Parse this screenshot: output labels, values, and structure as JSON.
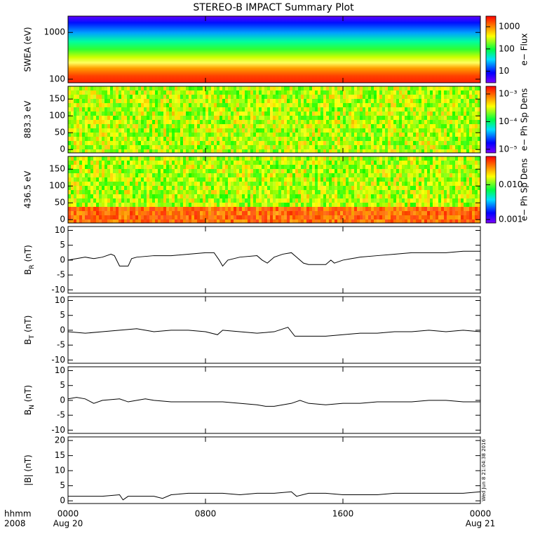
{
  "chart_data": [
    {
      "type": "spectrogram",
      "title": "STEREO-B IMPACT Summary Plot",
      "ylabel": "SWEA (eV)",
      "log": true,
      "ylim": [
        84,
        2230
      ],
      "yticks": [
        100,
        1000
      ],
      "colorbar": {
        "label": "e− Flux",
        "log": true,
        "lim": [
          3,
          3000
        ],
        "ticks": [
          10,
          100,
          1000
        ]
      },
      "palette": "bands"
    },
    {
      "type": "spectrogram",
      "ylabel": "883.3 eV",
      "log": false,
      "ylim": [
        -10,
        188
      ],
      "yticks": [
        0,
        50,
        100,
        150
      ],
      "colorbar": {
        "label": "e− Ph Sp Dens",
        "log": true,
        "lim": [
          7.4e-06,
          0.0019
        ],
        "ticks": [
          {
            "value": 0.001,
            "label": "10⁻³"
          },
          {
            "value": 0.0001,
            "label": "10⁻⁴"
          },
          {
            "value": 1e-05,
            "label": "10⁻⁵"
          }
        ]
      },
      "palette": "noise"
    },
    {
      "type": "spectrogram",
      "ylabel": "436.5 eV",
      "log": false,
      "ylim": [
        -10,
        188
      ],
      "yticks": [
        0,
        50,
        100,
        150
      ],
      "colorbar": {
        "label": "e− Ph Sp Dens",
        "log": true,
        "lim": [
          0.00079,
          0.066
        ],
        "ticks": [
          {
            "value": 0.001,
            "label": "0.001"
          },
          {
            "value": 0.01,
            "label": "0.010"
          }
        ]
      },
      "palette": "noise-low"
    },
    {
      "type": "line",
      "ylabel": [
        "B",
        "R",
        " (nT)"
      ],
      "ylim": [
        -11.1,
        11.3
      ],
      "yticks": [
        -10,
        -5,
        0,
        5,
        10
      ],
      "x": [
        0,
        0.5,
        1,
        1.5,
        2,
        2.5,
        2.7,
        3,
        3.5,
        3.7,
        4,
        5,
        6,
        7,
        8,
        8.5,
        8.8,
        9,
        9.3,
        10,
        11,
        11.3,
        11.6,
        12,
        12.5,
        13,
        13.3,
        13.7,
        14,
        15,
        15.3,
        15.5,
        16,
        16.5,
        17,
        18,
        19,
        20,
        22,
        23,
        24
      ],
      "values": [
        0,
        0.5,
        1,
        0.5,
        1,
        2,
        1.5,
        -2,
        -2,
        0.5,
        1,
        1.5,
        1.5,
        2,
        2.5,
        2.5,
        0,
        -2,
        0,
        1,
        1.5,
        0,
        -1,
        1,
        2,
        2.5,
        1,
        -1,
        -1.5,
        -1.5,
        0,
        -1,
        0,
        0.5,
        1,
        1.5,
        2,
        2.5,
        2.5,
        3,
        3
      ],
      "color": "#000000"
    },
    {
      "type": "line",
      "ylabel": [
        "B",
        "T",
        " (nT)"
      ],
      "ylim": [
        -11.1,
        11.3
      ],
      "yticks": [
        -10,
        -5,
        0,
        5,
        10
      ],
      "x": [
        0,
        1,
        2,
        3,
        4,
        5,
        6,
        7,
        8,
        8.7,
        9,
        10,
        11,
        12,
        12.8,
        13.2,
        14,
        15,
        16,
        17,
        18,
        19,
        20,
        21,
        22,
        23,
        24
      ],
      "values": [
        -0.5,
        -1,
        -0.5,
        0,
        0.5,
        -0.5,
        0,
        0,
        -0.5,
        -1.5,
        0,
        -0.5,
        -1,
        -0.5,
        1,
        -2,
        -2,
        -2,
        -1.5,
        -1,
        -1,
        -0.5,
        -0.5,
        0,
        -0.5,
        0,
        -0.5
      ],
      "color": "#000000"
    },
    {
      "type": "line",
      "ylabel": [
        "B",
        "N",
        " (nT)"
      ],
      "ylim": [
        -11.1,
        11.3
      ],
      "yticks": [
        -10,
        -5,
        0,
        5,
        10
      ],
      "x": [
        0,
        0.5,
        1,
        1.5,
        2,
        3,
        3.5,
        4,
        4.5,
        5,
        6,
        7,
        8,
        9,
        10,
        11,
        11.5,
        12,
        12.5,
        13,
        13.5,
        14,
        15,
        16,
        17,
        18,
        19,
        20,
        21,
        22,
        23,
        24
      ],
      "values": [
        0.5,
        1,
        0.5,
        -1,
        0,
        0.5,
        -0.5,
        0,
        0.5,
        0,
        -0.5,
        -0.5,
        -0.5,
        -0.5,
        -1,
        -1.5,
        -2,
        -2,
        -1.5,
        -1,
        0,
        -1,
        -1.5,
        -1,
        -1,
        -0.5,
        -0.5,
        -0.5,
        0,
        0,
        -0.5,
        -0.5
      ],
      "color": "#000000"
    },
    {
      "type": "line",
      "ylabel": [
        "|B| (nT)"
      ],
      "ylim": [
        -0.9,
        21.2
      ],
      "yticks": [
        0,
        5,
        10,
        15,
        20
      ],
      "x": [
        0,
        1,
        2,
        3,
        3.2,
        3.5,
        4,
        5,
        5.5,
        6,
        7,
        8,
        9,
        10,
        11,
        12,
        13,
        13.3,
        14,
        15,
        16,
        17,
        18,
        19,
        20,
        21,
        22,
        23,
        24
      ],
      "values": [
        1.5,
        1.5,
        1.5,
        2,
        0.3,
        1.5,
        1.5,
        1.5,
        0.8,
        2,
        2.5,
        2.5,
        2.5,
        2,
        2.5,
        2.5,
        3,
        1.5,
        2.5,
        2.5,
        2,
        2,
        2,
        2.5,
        2.5,
        2.5,
        2.5,
        2.5,
        3
      ],
      "color": "#000000",
      "xlim": [
        0,
        24
      ],
      "xticks": [
        {
          "value": 0,
          "label": "0000"
        },
        {
          "value": 8,
          "label": "0800"
        },
        {
          "value": 16,
          "label": "1600"
        },
        {
          "value": 24,
          "label": "0000"
        }
      ],
      "date_labels": [
        "Aug 20",
        "Aug 21"
      ],
      "axis_prefix": [
        "hhmm",
        "2008"
      ],
      "annotation": "Wed Jun  8 21:04:38 2016"
    }
  ]
}
